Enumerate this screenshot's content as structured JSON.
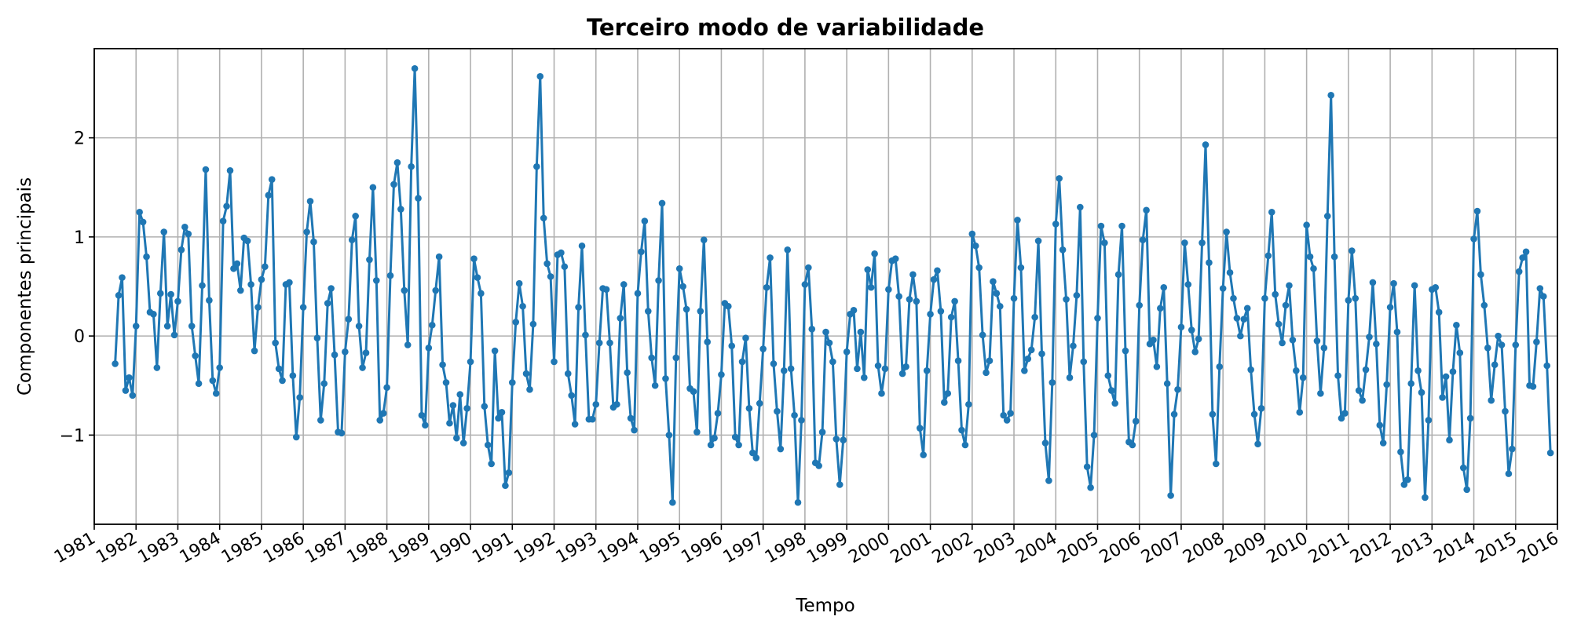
{
  "chart_data": {
    "type": "line",
    "title": "Terceiro modo de variabilidade",
    "xlabel": "Tempo",
    "ylabel": "Componentes principais",
    "xlim": [
      "1981-01",
      "2016-01"
    ],
    "ylim": [
      -1.9,
      2.9
    ],
    "y_ticks": [
      -1,
      0,
      1,
      2
    ],
    "y_tick_labels": [
      "−1",
      "0",
      "1",
      "2"
    ],
    "x_ticks": [
      1981,
      1982,
      1983,
      1984,
      1985,
      1986,
      1987,
      1988,
      1989,
      1990,
      1991,
      1992,
      1993,
      1994,
      1995,
      1996,
      1997,
      1998,
      1999,
      2000,
      2001,
      2002,
      2003,
      2004,
      2005,
      2006,
      2007,
      2008,
      2009,
      2010,
      2011,
      2012,
      2013,
      2014,
      2015,
      2016
    ],
    "grid": true,
    "legend": "none",
    "series": [
      {
        "color": "#1f77b4",
        "marker": "circle",
        "x_start": "1981-07",
        "x_step": "1 month",
        "values": [
          -0.28,
          0.41,
          0.59,
          -0.55,
          -0.42,
          -0.6,
          0.1,
          1.25,
          1.15,
          0.8,
          0.24,
          0.22,
          -0.32,
          0.43,
          1.05,
          0.1,
          0.42,
          0.01,
          0.35,
          0.87,
          1.1,
          1.03,
          0.1,
          -0.2,
          -0.48,
          0.51,
          1.68,
          0.36,
          -0.45,
          -0.58,
          -0.32,
          1.16,
          1.31,
          1.67,
          0.68,
          0.73,
          0.46,
          0.99,
          0.96,
          0.52,
          -0.15,
          0.29,
          0.57,
          0.7,
          1.42,
          1.58,
          -0.07,
          -0.33,
          -0.45,
          0.52,
          0.54,
          -0.4,
          -1.02,
          -0.62,
          0.29,
          1.05,
          1.36,
          0.95,
          -0.02,
          -0.85,
          -0.48,
          0.33,
          0.48,
          -0.19,
          -0.97,
          -0.98,
          -0.16,
          0.17,
          0.97,
          1.21,
          0.1,
          -0.32,
          -0.17,
          0.77,
          1.5,
          0.56,
          -0.85,
          -0.78,
          -0.52,
          0.61,
          1.53,
          1.75,
          1.28,
          0.46,
          -0.09,
          1.71,
          2.7,
          1.39,
          -0.8,
          -0.9,
          -0.12,
          0.11,
          0.46,
          0.8,
          -0.29,
          -0.47,
          -0.88,
          -0.7,
          -1.03,
          -0.59,
          -1.08,
          -0.73,
          -0.26,
          0.78,
          0.59,
          0.43,
          -0.71,
          -1.1,
          -1.29,
          -0.15,
          -0.83,
          -0.77,
          -1.51,
          -1.38,
          -0.47,
          0.14,
          0.53,
          0.3,
          -0.38,
          -0.54,
          0.12,
          1.71,
          2.62,
          1.19,
          0.73,
          0.6,
          -0.26,
          0.82,
          0.84,
          0.7,
          -0.38,
          -0.6,
          -0.89,
          0.29,
          0.91,
          0.01,
          -0.84,
          -0.84,
          -0.69,
          -0.07,
          0.48,
          0.47,
          -0.07,
          -0.72,
          -0.69,
          0.18,
          0.52,
          -0.37,
          -0.83,
          -0.95,
          0.43,
          0.85,
          1.16,
          0.25,
          -0.22,
          -0.5,
          0.56,
          1.34,
          -0.43,
          -1.0,
          -1.68,
          -0.22,
          0.68,
          0.5,
          0.27,
          -0.53,
          -0.56,
          -0.97,
          0.25,
          0.97,
          -0.06,
          -1.1,
          -1.03,
          -0.78,
          -0.39,
          0.33,
          0.3,
          -0.1,
          -1.02,
          -1.1,
          -0.26,
          -0.02,
          -0.73,
          -1.18,
          -1.23,
          -0.68,
          -0.13,
          0.49,
          0.79,
          -0.28,
          -0.76,
          -1.14,
          -0.35,
          0.87,
          -0.33,
          -0.8,
          -1.68,
          -0.85,
          0.52,
          0.69,
          0.07,
          -1.28,
          -1.31,
          -0.97,
          0.04,
          -0.07,
          -0.26,
          -1.04,
          -1.5,
          -1.05,
          -0.16,
          0.22,
          0.26,
          -0.33,
          0.04,
          -0.42,
          0.67,
          0.49,
          0.83,
          -0.3,
          -0.58,
          -0.33,
          0.47,
          0.76,
          0.78,
          0.4,
          -0.38,
          -0.31,
          0.37,
          0.62,
          0.35,
          -0.93,
          -1.2,
          -0.35,
          0.22,
          0.57,
          0.66,
          0.25,
          -0.67,
          -0.58,
          0.19,
          0.35,
          -0.25,
          -0.95,
          -1.1,
          -0.69,
          1.03,
          0.91,
          0.69,
          0.01,
          -0.37,
          -0.25,
          0.55,
          0.43,
          0.3,
          -0.8,
          -0.85,
          -0.78,
          0.38,
          1.17,
          0.69,
          -0.35,
          -0.23,
          -0.14,
          0.19,
          0.96,
          -0.18,
          -1.08,
          -1.46,
          -0.47,
          1.13,
          1.59,
          0.87,
          0.37,
          -0.42,
          -0.1,
          0.41,
          1.3,
          -0.26,
          -1.32,
          -1.53,
          -1.0,
          0.18,
          1.11,
          0.94,
          -0.4,
          -0.55,
          -0.68,
          0.62,
          1.11,
          -0.15,
          -1.07,
          -1.1,
          -0.86,
          0.31,
          0.97,
          1.27,
          -0.08,
          -0.04,
          -0.31,
          0.28,
          0.49,
          -0.48,
          -1.61,
          -0.79,
          -0.54,
          0.09,
          0.94,
          0.52,
          0.06,
          -0.16,
          -0.03,
          0.94,
          1.93,
          0.74,
          -0.79,
          -1.29,
          -0.31,
          0.48,
          1.05,
          0.64,
          0.38,
          0.18,
          0.0,
          0.17,
          0.28,
          -0.34,
          -0.79,
          -1.09,
          -0.73,
          0.38,
          0.81,
          1.25,
          0.42,
          0.12,
          -0.07,
          0.31,
          0.51,
          -0.04,
          -0.35,
          -0.77,
          -0.42,
          1.12,
          0.8,
          0.68,
          -0.05,
          -0.58,
          -0.12,
          1.21,
          2.43,
          0.8,
          -0.4,
          -0.83,
          -0.78,
          0.36,
          0.86,
          0.38,
          -0.55,
          -0.65,
          -0.34,
          -0.01,
          0.54,
          -0.08,
          -0.9,
          -1.08,
          -0.49,
          0.29,
          0.53,
          0.04,
          -1.17,
          -1.5,
          -1.45,
          -0.48,
          0.51,
          -0.35,
          -0.57,
          -1.63,
          -0.85,
          0.47,
          0.49,
          0.24,
          -0.62,
          -0.41,
          -1.05,
          -0.36,
          0.11,
          -0.17,
          -1.33,
          -1.55,
          -0.83,
          0.98,
          1.26,
          0.62,
          0.31,
          -0.12,
          -0.65,
          -0.29,
          0.0,
          -0.09,
          -0.76,
          -1.39,
          -1.14,
          -0.09,
          0.65,
          0.79,
          0.85,
          -0.5,
          -0.51,
          -0.06,
          0.48,
          0.4,
          -0.3,
          -1.18
        ]
      }
    ]
  }
}
